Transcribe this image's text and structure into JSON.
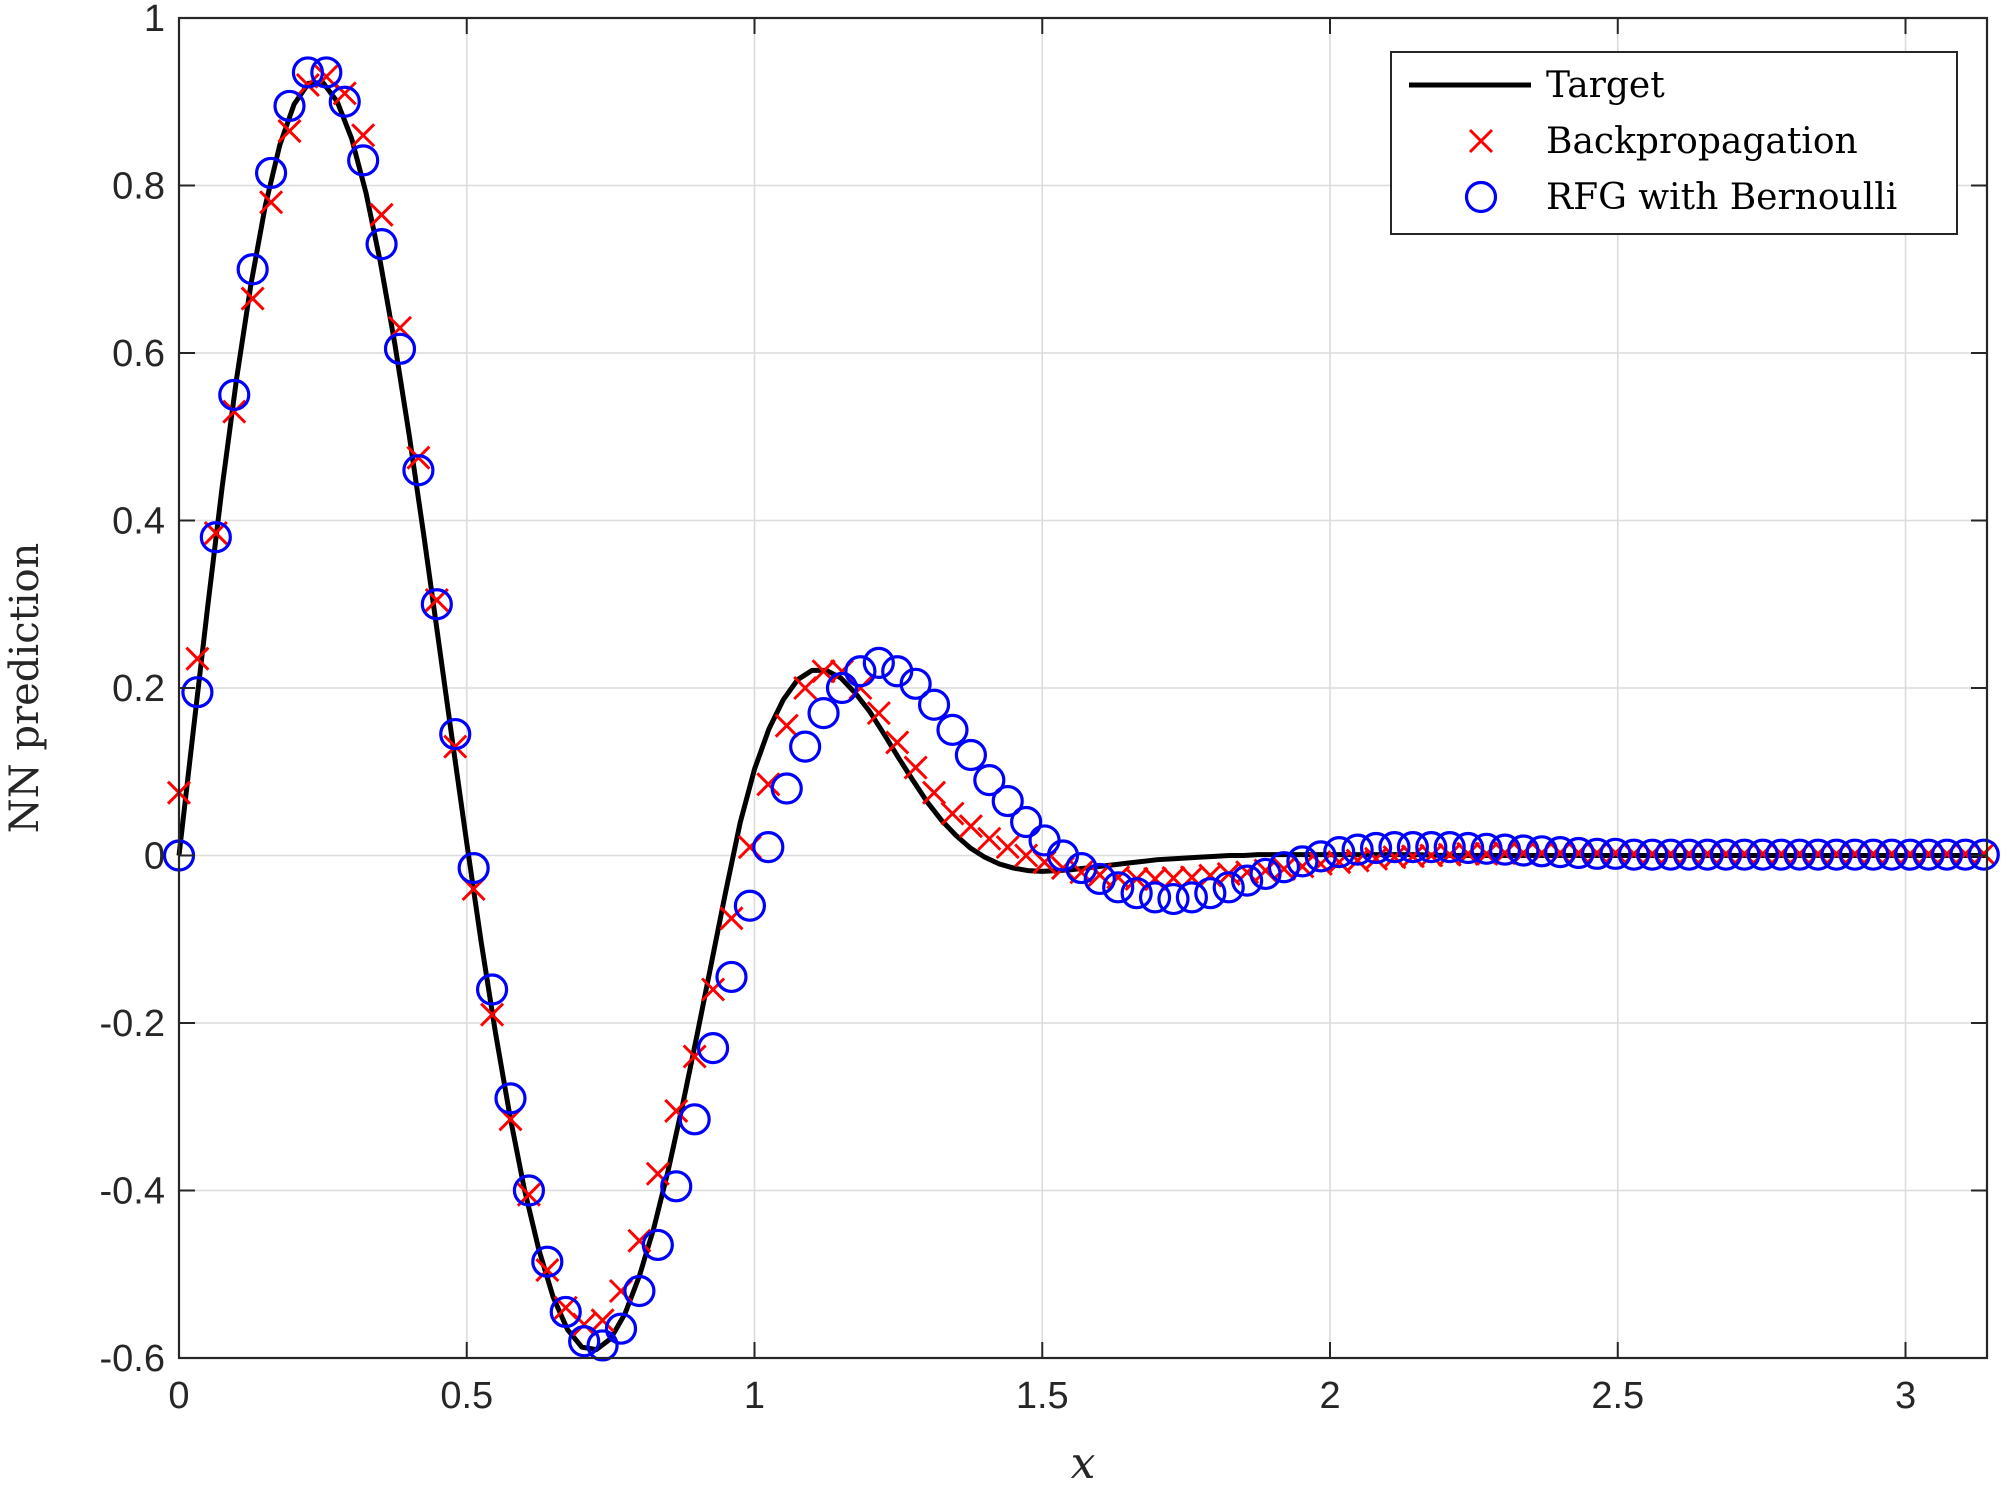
{
  "chart_data": {
    "type": "line",
    "title": "",
    "xlabel": "x",
    "ylabel": "NN prediction",
    "xlim": [
      0,
      3.14159
    ],
    "ylim": [
      -0.6,
      1
    ],
    "xticks": [
      0,
      0.5,
      1,
      1.5,
      2,
      2.5,
      3
    ],
    "xtick_labels": [
      "0",
      "0.5",
      "1",
      "1.5",
      "2",
      "2.5",
      "3"
    ],
    "yticks": [
      -0.6,
      -0.4,
      -0.2,
      0,
      0.2,
      0.4,
      0.6,
      0.8,
      1
    ],
    "ytick_labels": [
      "-0.6",
      "-0.4",
      "-0.2",
      "0",
      "0.2",
      "0.4",
      "0.6",
      "0.8",
      "1"
    ],
    "grid": true,
    "legend_position": "top-right",
    "series": [
      {
        "name": "Target",
        "style": "line",
        "color": "#000000",
        "x": [
          0,
          0.025,
          0.05,
          0.075,
          0.1,
          0.125,
          0.15,
          0.175,
          0.2,
          0.225,
          0.25,
          0.275,
          0.3,
          0.325,
          0.35,
          0.375,
          0.4,
          0.425,
          0.45,
          0.475,
          0.5,
          0.525,
          0.55,
          0.575,
          0.6,
          0.625,
          0.65,
          0.675,
          0.7,
          0.725,
          0.75,
          0.775,
          0.8,
          0.825,
          0.85,
          0.875,
          0.9,
          0.925,
          0.95,
          0.975,
          1.0,
          1.025,
          1.05,
          1.075,
          1.1,
          1.125,
          1.15,
          1.175,
          1.2,
          1.225,
          1.25,
          1.275,
          1.3,
          1.325,
          1.35,
          1.375,
          1.4,
          1.425,
          1.45,
          1.475,
          1.5,
          1.525,
          1.55,
          1.575,
          1.6,
          1.625,
          1.65,
          1.675,
          1.7,
          1.725,
          1.75,
          1.775,
          1.8,
          1.825,
          1.85,
          1.875,
          1.9,
          1.925,
          1.95,
          1.975,
          2.0,
          2.05,
          2.1,
          2.15,
          2.2,
          2.25,
          2.3,
          2.35,
          2.4,
          2.5,
          2.6,
          2.7,
          2.8,
          2.9,
          3.0,
          3.1,
          3.14159
        ],
        "y": [
          0,
          0.15,
          0.298,
          0.44,
          0.569,
          0.682,
          0.776,
          0.848,
          0.897,
          0.922,
          0.923,
          0.9,
          0.856,
          0.791,
          0.708,
          0.611,
          0.502,
          0.384,
          0.261,
          0.137,
          0.015,
          -0.103,
          -0.212,
          -0.311,
          -0.398,
          -0.47,
          -0.527,
          -0.566,
          -0.587,
          -0.59,
          -0.577,
          -0.547,
          -0.502,
          -0.445,
          -0.376,
          -0.298,
          -0.215,
          -0.129,
          -0.043,
          0.039,
          0.103,
          0.151,
          0.186,
          0.21,
          0.221,
          0.221,
          0.212,
          0.194,
          0.172,
          0.145,
          0.117,
          0.09,
          0.064,
          0.042,
          0.024,
          0.009,
          -0.002,
          -0.01,
          -0.015,
          -0.018,
          -0.019,
          -0.018,
          -0.017,
          -0.015,
          -0.013,
          -0.011,
          -0.009,
          -0.007,
          -0.005,
          -0.004,
          -0.003,
          -0.002,
          -0.001,
          0,
          0,
          0.001,
          0.001,
          0.001,
          0.001,
          0.001,
          0.001,
          0.001,
          0.001,
          0.001,
          0,
          0,
          0,
          0,
          0,
          0,
          0,
          0,
          0,
          0,
          0,
          0,
          0
        ]
      },
      {
        "name": "Backpropagation",
        "style": "marker-x",
        "color": "#ff0000",
        "x": [
          0,
          0.032,
          0.064,
          0.096,
          0.128,
          0.16,
          0.192,
          0.224,
          0.256,
          0.288,
          0.32,
          0.352,
          0.384,
          0.416,
          0.448,
          0.48,
          0.512,
          0.544,
          0.576,
          0.608,
          0.64,
          0.672,
          0.704,
          0.736,
          0.768,
          0.8,
          0.832,
          0.864,
          0.896,
          0.928,
          0.96,
          0.992,
          1.024,
          1.056,
          1.088,
          1.12,
          1.152,
          1.184,
          1.216,
          1.248,
          1.28,
          1.312,
          1.344,
          1.376,
          1.408,
          1.44,
          1.472,
          1.504,
          1.536,
          1.568,
          1.6,
          1.632,
          1.664,
          1.696,
          1.728,
          1.76,
          1.792,
          1.824,
          1.856,
          1.888,
          1.92,
          1.952,
          1.984,
          2.016,
          2.048,
          2.08,
          2.112,
          2.144,
          2.176,
          2.208,
          2.24,
          2.272,
          2.304,
          2.336,
          2.368,
          2.4,
          2.432,
          2.464,
          2.496,
          2.528,
          2.56,
          2.592,
          2.624,
          2.656,
          2.688,
          2.72,
          2.752,
          2.784,
          2.816,
          2.848,
          2.88,
          2.912,
          2.944,
          2.976,
          3.008,
          3.04,
          3.072,
          3.104,
          3.136
        ],
        "y": [
          0.075,
          0.235,
          0.385,
          0.53,
          0.665,
          0.78,
          0.865,
          0.92,
          0.93,
          0.91,
          0.86,
          0.765,
          0.63,
          0.475,
          0.305,
          0.13,
          -0.04,
          -0.19,
          -0.315,
          -0.405,
          -0.495,
          -0.54,
          -0.56,
          -0.555,
          -0.52,
          -0.46,
          -0.38,
          -0.305,
          -0.24,
          -0.16,
          -0.075,
          0.01,
          0.085,
          0.155,
          0.2,
          0.22,
          0.22,
          0.2,
          0.17,
          0.135,
          0.105,
          0.075,
          0.05,
          0.035,
          0.02,
          0.01,
          0,
          -0.008,
          -0.015,
          -0.02,
          -0.023,
          -0.026,
          -0.028,
          -0.028,
          -0.027,
          -0.026,
          -0.024,
          -0.022,
          -0.02,
          -0.018,
          -0.016,
          -0.013,
          -0.01,
          -0.008,
          -0.006,
          -0.004,
          -0.002,
          -0.001,
          0,
          0.001,
          0.002,
          0.002,
          0.003,
          0.003,
          0.003,
          0.003,
          0.003,
          0.003,
          0.003,
          0.002,
          0.002,
          0.002,
          0.002,
          0.002,
          0.002,
          0.002,
          0.002,
          0.002,
          0.002,
          0.002,
          0.002,
          0.002,
          0.002,
          0.002,
          0.002,
          0.002,
          0.002,
          0.002,
          0.002
        ]
      },
      {
        "name": "RFG with Bernoulli",
        "style": "marker-o",
        "color": "#0000ff",
        "x": [
          0,
          0.032,
          0.064,
          0.096,
          0.128,
          0.16,
          0.192,
          0.224,
          0.256,
          0.288,
          0.32,
          0.352,
          0.384,
          0.416,
          0.448,
          0.48,
          0.512,
          0.544,
          0.576,
          0.608,
          0.64,
          0.672,
          0.704,
          0.736,
          0.768,
          0.8,
          0.832,
          0.864,
          0.896,
          0.928,
          0.96,
          0.992,
          1.024,
          1.056,
          1.088,
          1.12,
          1.152,
          1.184,
          1.216,
          1.248,
          1.28,
          1.312,
          1.344,
          1.376,
          1.408,
          1.44,
          1.472,
          1.504,
          1.536,
          1.568,
          1.6,
          1.632,
          1.664,
          1.696,
          1.728,
          1.76,
          1.792,
          1.824,
          1.856,
          1.888,
          1.92,
          1.952,
          1.984,
          2.016,
          2.048,
          2.08,
          2.112,
          2.144,
          2.176,
          2.208,
          2.24,
          2.272,
          2.304,
          2.336,
          2.368,
          2.4,
          2.432,
          2.464,
          2.496,
          2.528,
          2.56,
          2.592,
          2.624,
          2.656,
          2.688,
          2.72,
          2.752,
          2.784,
          2.816,
          2.848,
          2.88,
          2.912,
          2.944,
          2.976,
          3.008,
          3.04,
          3.072,
          3.104,
          3.136
        ],
        "y": [
          0,
          0.195,
          0.38,
          0.55,
          0.7,
          0.815,
          0.895,
          0.935,
          0.935,
          0.9,
          0.83,
          0.73,
          0.605,
          0.46,
          0.3,
          0.145,
          -0.015,
          -0.16,
          -0.29,
          -0.4,
          -0.485,
          -0.545,
          -0.58,
          -0.585,
          -0.565,
          -0.52,
          -0.465,
          -0.395,
          -0.315,
          -0.23,
          -0.145,
          -0.06,
          0.01,
          0.08,
          0.13,
          0.17,
          0.2,
          0.22,
          0.23,
          0.22,
          0.205,
          0.18,
          0.15,
          0.12,
          0.09,
          0.065,
          0.04,
          0.018,
          0,
          -0.015,
          -0.028,
          -0.038,
          -0.045,
          -0.05,
          -0.052,
          -0.05,
          -0.045,
          -0.038,
          -0.03,
          -0.022,
          -0.014,
          -0.007,
          -0.001,
          0.004,
          0.007,
          0.009,
          0.01,
          0.01,
          0.01,
          0.01,
          0.009,
          0.008,
          0.007,
          0.006,
          0.005,
          0.004,
          0.003,
          0.002,
          0.002,
          0.001,
          0.001,
          0.001,
          0.001,
          0.001,
          0.001,
          0.001,
          0.001,
          0.001,
          0.001,
          0.001,
          0.001,
          0.001,
          0.001,
          0.001,
          0.001,
          0.001,
          0.001,
          0.001,
          0.001
        ]
      }
    ]
  }
}
